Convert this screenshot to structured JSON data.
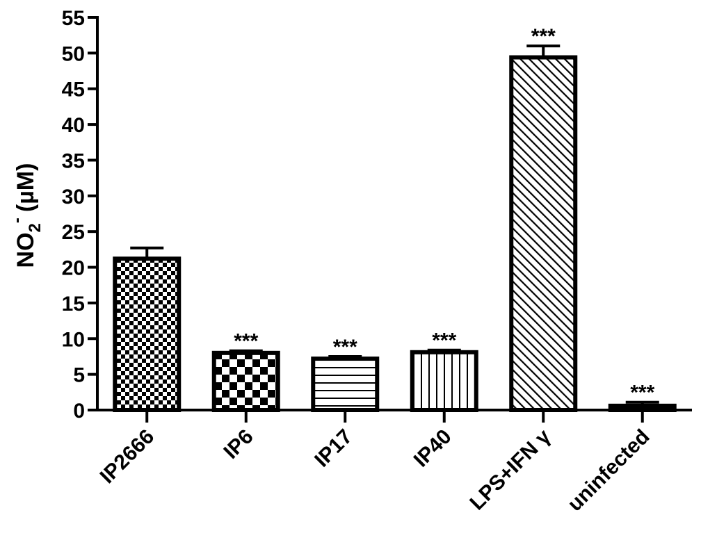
{
  "chart_data": {
    "type": "bar",
    "title": "",
    "xlabel": "",
    "ylabel": {
      "main": "NO",
      "subscript": "2",
      "superscript": "-",
      "unit": "(µM)"
    },
    "ylim": [
      0,
      55
    ],
    "yticks": [
      0,
      5,
      10,
      15,
      20,
      25,
      30,
      35,
      40,
      45,
      50,
      55
    ],
    "grid": false,
    "legend": "none",
    "categories": [
      "IP2666",
      "IP6",
      "IP17",
      "IP40",
      "LPS+IFN γ",
      "uninfected"
    ],
    "values": [
      21.2,
      8.0,
      7.2,
      8.1,
      49.4,
      0.6
    ],
    "errors": [
      1.5,
      0.3,
      0.3,
      0.3,
      1.6,
      0.5
    ],
    "significance": [
      "",
      "***",
      "***",
      "***",
      "***",
      "***"
    ],
    "fill_patterns": [
      "fine-checker",
      "large-checker",
      "horizontal-lines",
      "vertical-lines",
      "diagonal-lines",
      "solid"
    ],
    "colors": {
      "ink": "#000000",
      "background": "#ffffff"
    }
  }
}
